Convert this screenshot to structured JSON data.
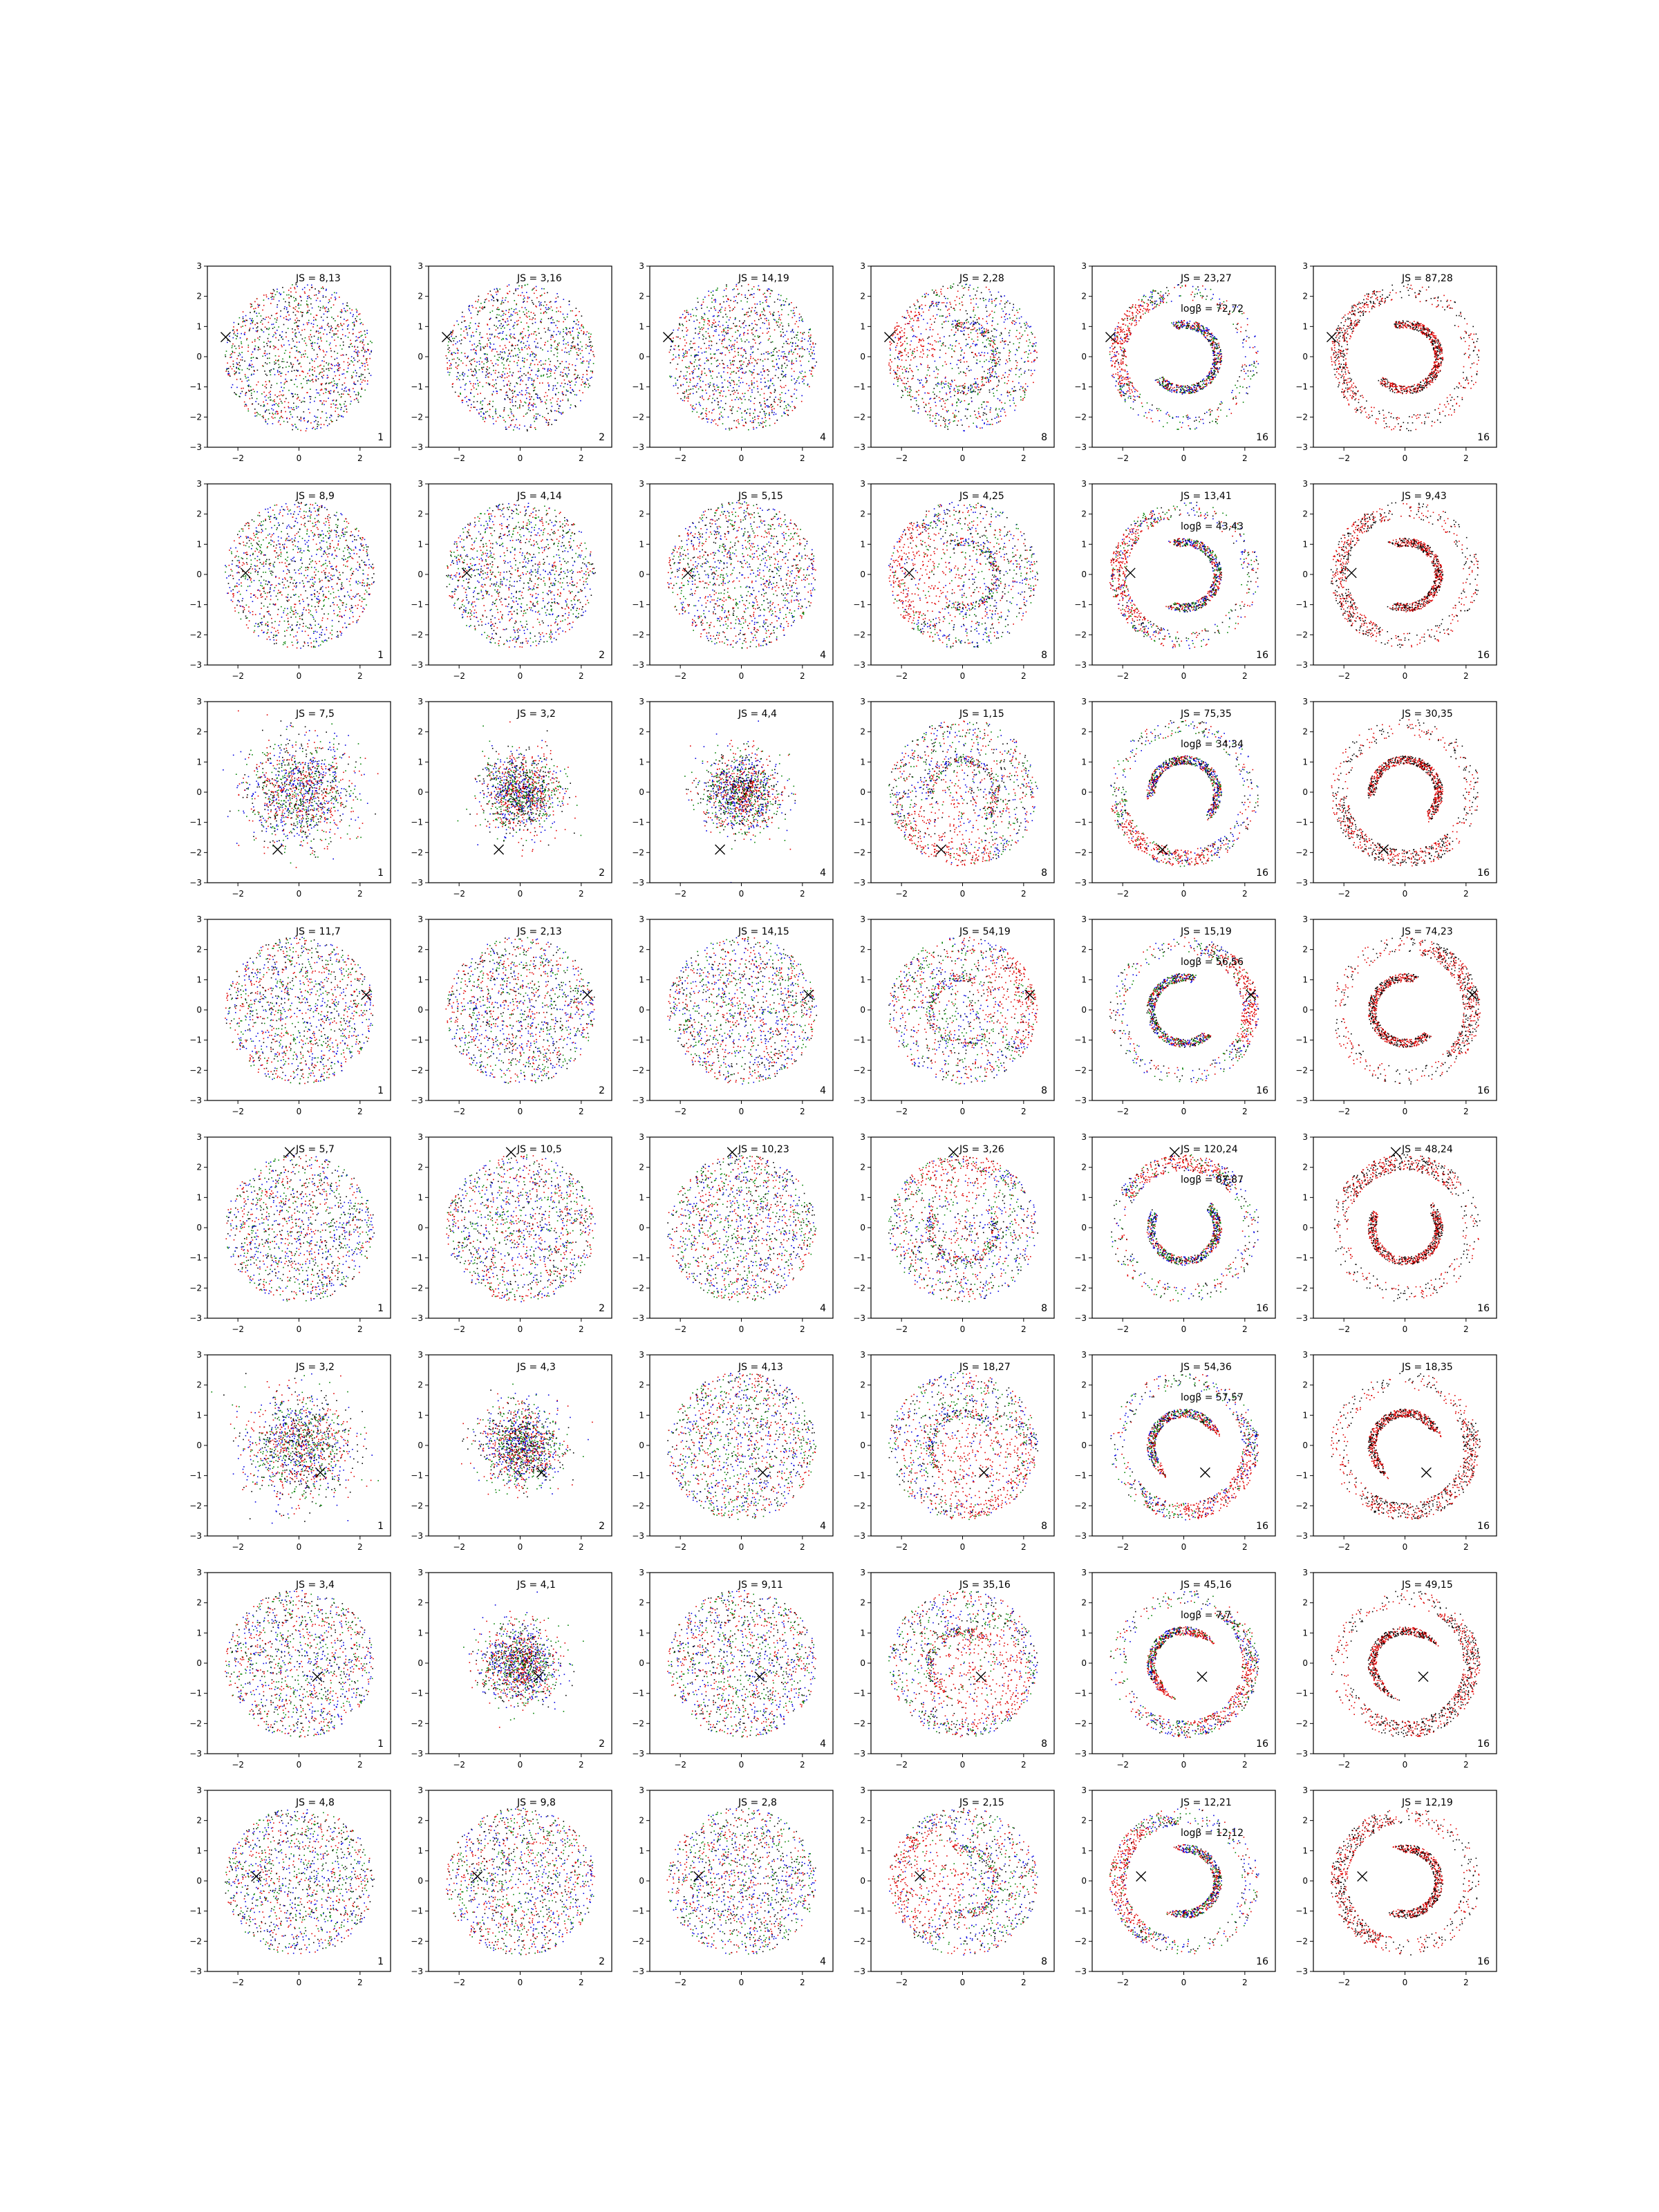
{
  "chart_data": {
    "type": "scatter",
    "grid": false,
    "xlim": [
      -3,
      3
    ],
    "ylim": [
      -3,
      3
    ],
    "ticks": [
      -3,
      -2,
      -1,
      0,
      1,
      2,
      3
    ],
    "xtick_labels": [
      "−2",
      "0",
      "2"
    ],
    "ytick_labels": [
      "−3",
      "−2",
      "−1",
      "0",
      "1",
      "2",
      "3"
    ],
    "colors": {
      "red": "#e00000",
      "green": "#008000",
      "blue": "#0000e0",
      "black": "#000000"
    },
    "rows": [
      {
        "marker": [
          -2.4,
          0.65
        ],
        "js": [
          "JS = 8,13",
          "JS = 3,16",
          "JS = 14,19",
          "JS = 2,28",
          "JS = 23,27",
          "JS = 87,28"
        ],
        "logb": "logβ = 72,72"
      },
      {
        "marker": [
          -1.75,
          0.05
        ],
        "js": [
          "JS = 8,9",
          "JS = 4,14",
          "JS = 5,15",
          "JS = 4,25",
          "JS = 13,41",
          "JS = 9,43"
        ],
        "logb": "logβ = 43,43"
      },
      {
        "marker": [
          -0.7,
          -1.9
        ],
        "js": [
          "JS = 7,5",
          "JS = 3,2",
          "JS = 4,4",
          "JS = 1,15",
          "JS = 75,35",
          "JS = 30,35"
        ],
        "logb": "logβ = 34,34"
      },
      {
        "marker": [
          2.2,
          0.5
        ],
        "js": [
          "JS = 11,7",
          "JS = 2,13",
          "JS = 14,15",
          "JS = 54,19",
          "JS = 15,19",
          "JS = 74,23"
        ],
        "logb": "logβ = 56,56"
      },
      {
        "marker": [
          -0.3,
          2.5
        ],
        "js": [
          "JS = 5,7",
          "JS = 10,5",
          "JS = 10,23",
          "JS = 3,26",
          "JS = 120,24",
          "JS = 48,24"
        ],
        "logb": "logβ = 87,87"
      },
      {
        "marker": [
          0.7,
          -0.9
        ],
        "js": [
          "JS = 3,2",
          "JS = 4,3",
          "JS = 4,13",
          "JS = 18,27",
          "JS = 54,36",
          "JS = 18,35"
        ],
        "logb": "logβ = 57,57"
      },
      {
        "marker": [
          0.6,
          -0.45
        ],
        "js": [
          "JS = 3,4",
          "JS = 4,1",
          "JS = 9,11",
          "JS = 35,16",
          "JS = 45,16",
          "JS = 49,15"
        ],
        "logb": "logβ = 7,7"
      },
      {
        "marker": [
          -1.4,
          0.15
        ],
        "js": [
          "JS = 4,8",
          "JS = 9,8",
          "JS = 2,8",
          "JS = 2,15",
          "JS = 12,21",
          "JS = 12,19"
        ],
        "logb": "logβ = 12,12"
      }
    ],
    "column_steps": [
      "1",
      "2",
      "4",
      "8",
      "16",
      "16"
    ]
  }
}
